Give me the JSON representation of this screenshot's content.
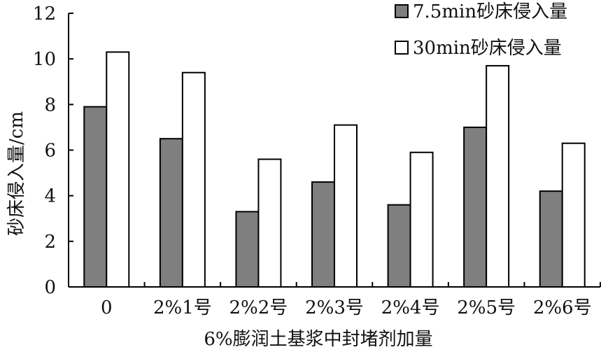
{
  "chart_data": {
    "type": "bar",
    "title": "",
    "xlabel": "6%膨润土基浆中封堵剂加量",
    "ylabel": "砂床侵入量/cm",
    "ylim": [
      0,
      12
    ],
    "yticks": [
      0,
      2,
      4,
      6,
      8,
      10,
      12
    ],
    "categories": [
      "0",
      "2%1号",
      "2%2号",
      "2%3号",
      "2%4号",
      "2%5号",
      "2%6号"
    ],
    "series": [
      {
        "name": "7.5min砂床侵入量",
        "values": [
          7.9,
          6.5,
          3.3,
          4.6,
          3.6,
          7.0,
          4.2
        ],
        "color": "#7f7f7f"
      },
      {
        "name": "30min砂床侵入量",
        "values": [
          10.3,
          9.4,
          5.6,
          7.1,
          5.9,
          9.7,
          6.3
        ],
        "color": "#ffffff"
      }
    ],
    "legend_position": "top-right",
    "grid": false
  }
}
